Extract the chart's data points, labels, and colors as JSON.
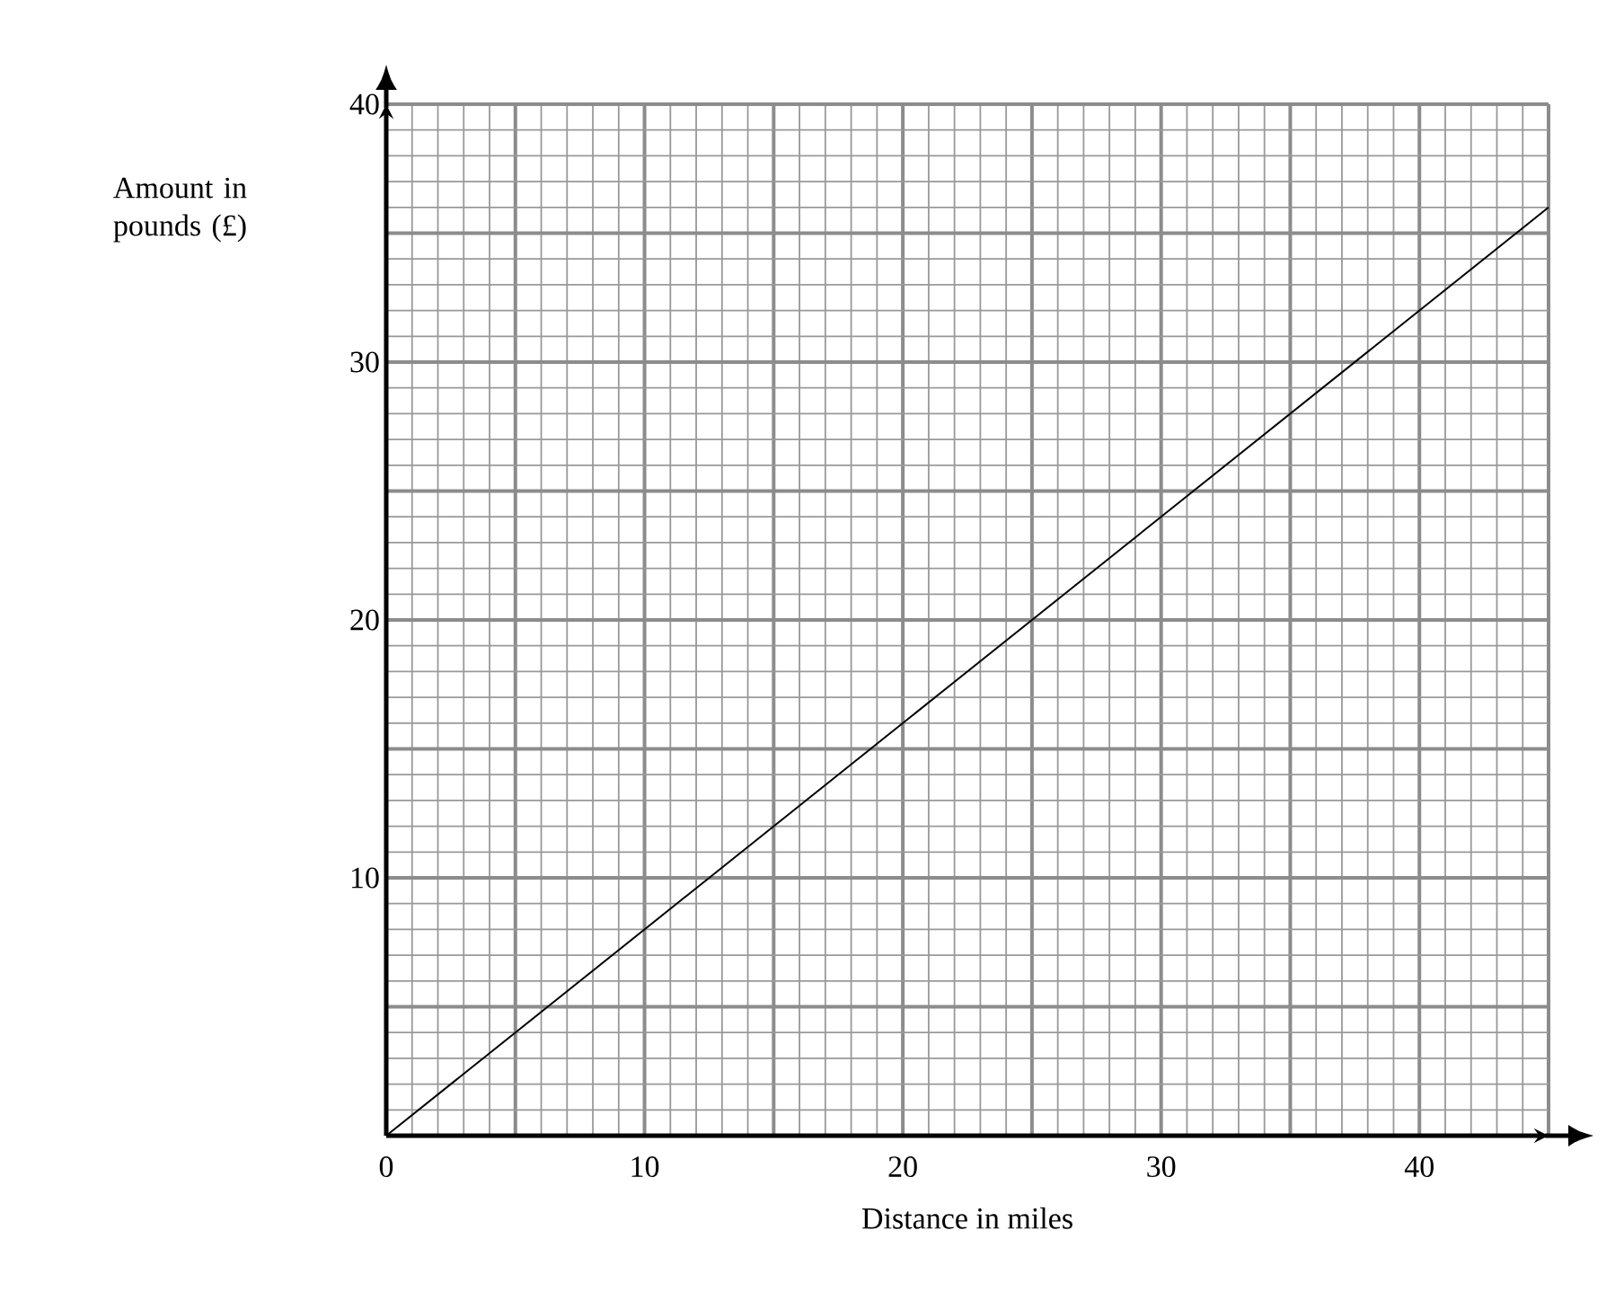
{
  "chart_data": {
    "type": "line",
    "xlabel": "Distance in miles",
    "ylabel": "Amount in pounds (£)",
    "x": [
      0,
      45
    ],
    "series": [
      {
        "color": "#000000",
        "values": [
          0,
          36
        ]
      }
    ],
    "xlim": [
      0,
      45
    ],
    "ylim": [
      0,
      40
    ],
    "xticks": [
      0,
      {
        "value": 5,
        "label": null
      },
      10,
      {
        "value": 15,
        "label": null
      },
      20,
      {
        "value": 25,
        "label": null
      },
      30,
      {
        "value": 35,
        "label": null
      },
      40,
      {
        "value": 45,
        "label": null
      }
    ],
    "yticks": [
      {
        "value": 0,
        "label": null
      },
      {
        "value": 5,
        "label": null
      },
      10,
      {
        "value": 15,
        "label": null
      },
      20,
      {
        "value": 25,
        "label": null
      },
      30,
      {
        "value": 35,
        "label": null
      },
      40
    ],
    "grid": true,
    "marker": "none",
    "line_style": "solid"
  }
}
